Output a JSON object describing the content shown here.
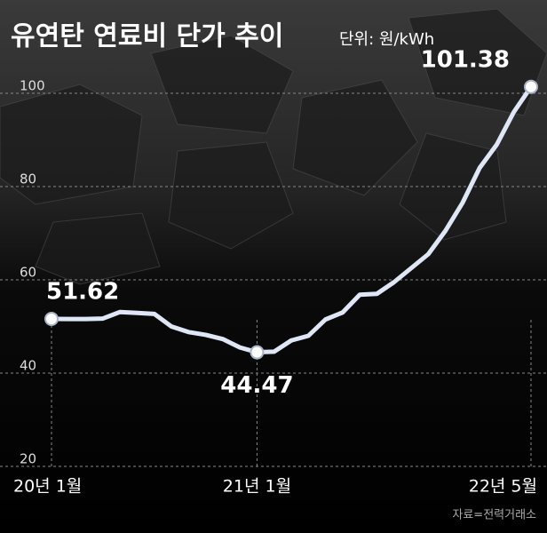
{
  "chart_data": {
    "type": "line",
    "title": "유연탄 연료비 단가 추이",
    "subtitle": "단위: 원/kWh",
    "source": "자료=전력거래소",
    "categories": [
      "20년 1월",
      null,
      null,
      null,
      null,
      null,
      null,
      null,
      null,
      null,
      null,
      null,
      "21년 1월",
      null,
      null,
      null,
      null,
      null,
      null,
      null,
      null,
      null,
      null,
      null,
      null,
      null,
      null,
      null,
      "22년 5월"
    ],
    "series": [
      {
        "name": "유연탄 연료비 단가",
        "color": "#dfe7f7",
        "values": [
          51.62,
          51.6,
          51.6,
          51.7,
          53.1,
          52.9,
          52.7,
          50.0,
          48.8,
          48.2,
          47.3,
          45.5,
          44.47,
          44.6,
          47.0,
          48.0,
          51.5,
          53.0,
          56.8,
          57.0,
          59.5,
          62.5,
          65.5,
          70.5,
          76.5,
          84.0,
          89.0,
          96.0,
          101.38
        ]
      }
    ],
    "labeled_points": [
      0,
      12,
      28
    ],
    "ylim": [
      18,
      104
    ],
    "yticks": [
      20,
      40,
      60,
      80,
      100
    ],
    "grid": true
  }
}
